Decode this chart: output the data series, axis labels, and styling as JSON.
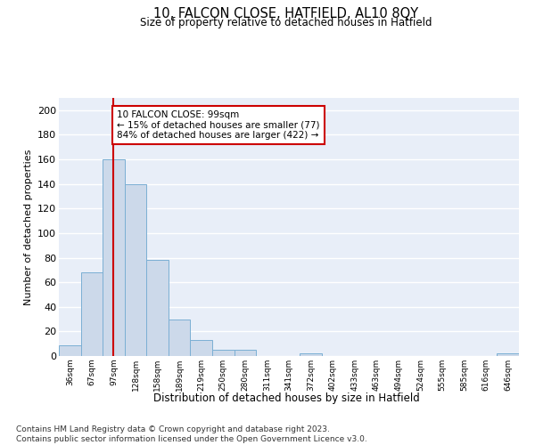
{
  "title": "10, FALCON CLOSE, HATFIELD, AL10 8QY",
  "subtitle": "Size of property relative to detached houses in Hatfield",
  "xlabel": "Distribution of detached houses by size in Hatfield",
  "ylabel": "Number of detached properties",
  "bar_labels": [
    "36sqm",
    "67sqm",
    "97sqm",
    "128sqm",
    "158sqm",
    "189sqm",
    "219sqm",
    "250sqm",
    "280sqm",
    "311sqm",
    "341sqm",
    "372sqm",
    "402sqm",
    "433sqm",
    "463sqm",
    "494sqm",
    "524sqm",
    "555sqm",
    "585sqm",
    "616sqm",
    "646sqm"
  ],
  "bar_values": [
    9,
    68,
    160,
    140,
    78,
    30,
    13,
    5,
    5,
    0,
    0,
    2,
    0,
    0,
    0,
    0,
    0,
    0,
    0,
    0,
    2
  ],
  "bar_color": "#ccd9ea",
  "bar_edge_color": "#7bafd4",
  "vline_x": 2,
  "vline_color": "#cc0000",
  "annotation_text": "10 FALCON CLOSE: 99sqm\n← 15% of detached houses are smaller (77)\n84% of detached houses are larger (422) →",
  "annotation_box_color": "#ffffff",
  "annotation_box_edge": "#cc0000",
  "ylim": [
    0,
    210
  ],
  "yticks": [
    0,
    20,
    40,
    60,
    80,
    100,
    120,
    140,
    160,
    180,
    200
  ],
  "background_color": "#e8eef8",
  "grid_color": "#ffffff",
  "footer_line1": "Contains HM Land Registry data © Crown copyright and database right 2023.",
  "footer_line2": "Contains public sector information licensed under the Open Government Licence v3.0."
}
